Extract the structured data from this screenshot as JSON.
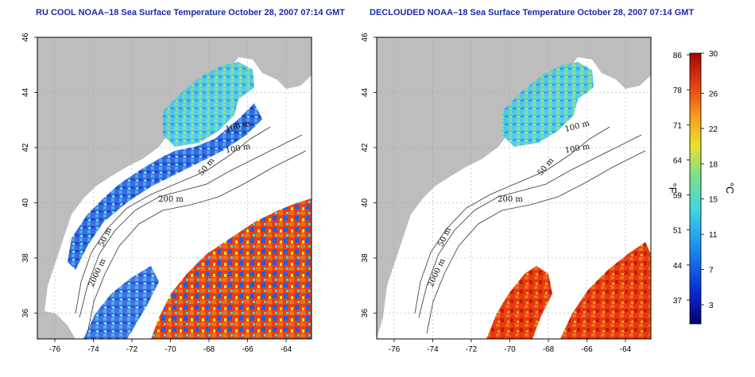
{
  "panels": [
    {
      "title": "RU COOL NOAA–18 Sea Surface Temperature October 28, 2007 07:14 GMT",
      "contours": [
        "100 m",
        "100 m",
        "50 m",
        "200 m",
        "50 m",
        "2000 m"
      ]
    },
    {
      "title": "DECLOUDED NOAA–18 Sea Surface Temperature October 28, 2007 07:14 GMT",
      "contours": [
        "100 m",
        "100 m",
        "50 m",
        "200 m",
        "50 m",
        "2000 m"
      ]
    }
  ],
  "axes": {
    "x_ticks": [
      "-76",
      "-74",
      "-72",
      "-70",
      "-68",
      "-66",
      "-64"
    ],
    "y_ticks": [
      "46",
      "44",
      "42",
      "40",
      "38",
      "36"
    ]
  },
  "colorbar": {
    "fahrenheit_ticks": [
      "86",
      "78",
      "71",
      "64",
      "59",
      "51",
      "44",
      "37"
    ],
    "celsius_ticks": [
      "30",
      "26",
      "22",
      "18",
      "15",
      "11",
      "7",
      "3"
    ],
    "fahrenheit_unit": "°F",
    "celsius_unit": "°C"
  },
  "colors": {
    "land": "#bdbdbd",
    "title": "#1a2aa8",
    "colorbar": [
      "#08006a",
      "#0a2bd6",
      "#1a8cf0",
      "#3fd6e0",
      "#7ee08a",
      "#e8e030",
      "#f5a020",
      "#e84010",
      "#a00808"
    ]
  }
}
